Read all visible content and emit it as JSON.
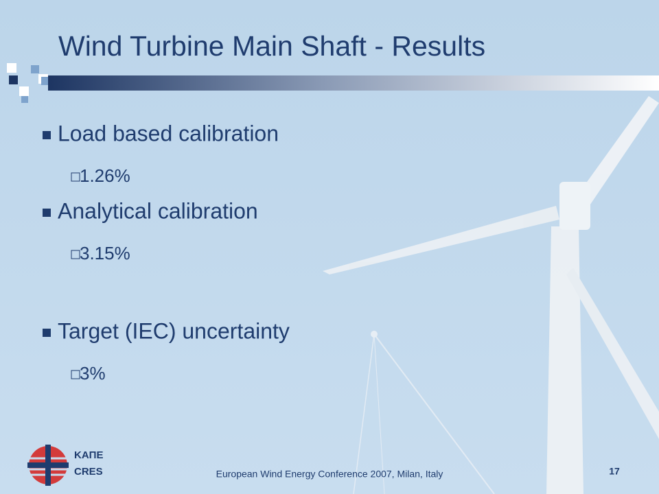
{
  "header": {
    "title": "Wind Turbine Main Shaft - Results"
  },
  "bullets": [
    {
      "text": "Load based calibration",
      "sub": [
        "1.26%"
      ]
    },
    {
      "text": "Analytical calibration",
      "sub": [
        "3.15%"
      ]
    },
    {
      "text": "Target (IEC) uncertainty",
      "sub": [
        "3%"
      ]
    }
  ],
  "logo": {
    "lines": [
      "ΚΑΠΕ",
      "CRES"
    ]
  },
  "footer": {
    "text": "European Wind Energy Conference 2007, Milan, Italy",
    "page": "17"
  }
}
